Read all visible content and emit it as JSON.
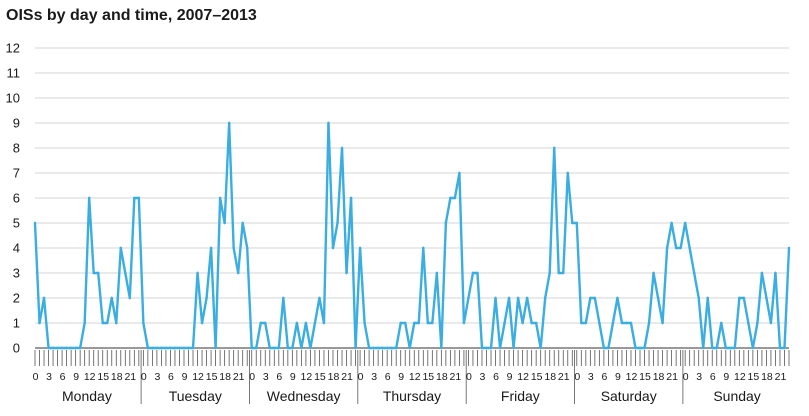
{
  "chart_data": {
    "type": "line",
    "title": "OISs by day and time, 2007–2013",
    "xlabel": "",
    "ylabel": "",
    "ylim": [
      0,
      12
    ],
    "y_ticks": [
      "0",
      "1",
      "2",
      "3",
      "4",
      "5",
      "6",
      "7",
      "8",
      "9",
      "10",
      "11",
      "12"
    ],
    "grid": "horizontal",
    "days": [
      "Monday",
      "Tuesday",
      "Wednesday",
      "Thursday",
      "Friday",
      "Saturday",
      "Sunday"
    ],
    "hour_ticks": [
      "0",
      "3",
      "6",
      "9",
      "12",
      "15",
      "18",
      "21"
    ],
    "line_color": "#3aaee0",
    "series": [
      {
        "values": [
          5,
          1,
          2,
          0,
          0,
          0,
          0,
          0,
          0,
          0,
          0,
          1,
          6,
          3,
          3,
          1,
          1,
          2,
          1,
          4,
          3,
          2,
          6,
          6,
          1,
          0,
          0,
          0,
          0,
          0,
          0,
          0,
          0,
          0,
          0,
          0,
          3,
          1,
          2,
          4,
          0,
          6,
          5,
          9,
          4,
          3,
          5,
          4,
          0,
          0,
          1,
          1,
          0,
          0,
          0,
          2,
          0,
          0,
          1,
          0,
          1,
          0,
          1,
          2,
          1,
          9,
          4,
          5,
          8,
          3,
          6,
          0,
          4,
          1,
          0,
          0,
          0,
          0,
          0,
          0,
          0,
          1,
          1,
          0,
          1,
          1,
          4,
          1,
          1,
          3,
          0,
          5,
          6,
          6,
          7,
          1,
          2,
          3,
          3,
          0,
          0,
          0,
          2,
          0,
          1,
          2,
          0,
          2,
          1,
          2,
          1,
          1,
          0,
          2,
          3,
          8,
          3,
          3,
          7,
          5,
          5,
          1,
          1,
          2,
          2,
          1,
          0,
          0,
          1,
          2,
          1,
          1,
          1,
          0,
          0,
          0,
          1,
          3,
          2,
          1,
          4,
          5,
          4,
          4,
          5,
          4,
          3,
          2,
          0,
          2,
          0,
          0,
          1,
          0,
          0,
          0,
          2,
          2,
          1,
          0,
          1,
          3,
          2,
          1,
          3,
          0,
          0,
          4
        ]
      }
    ]
  }
}
